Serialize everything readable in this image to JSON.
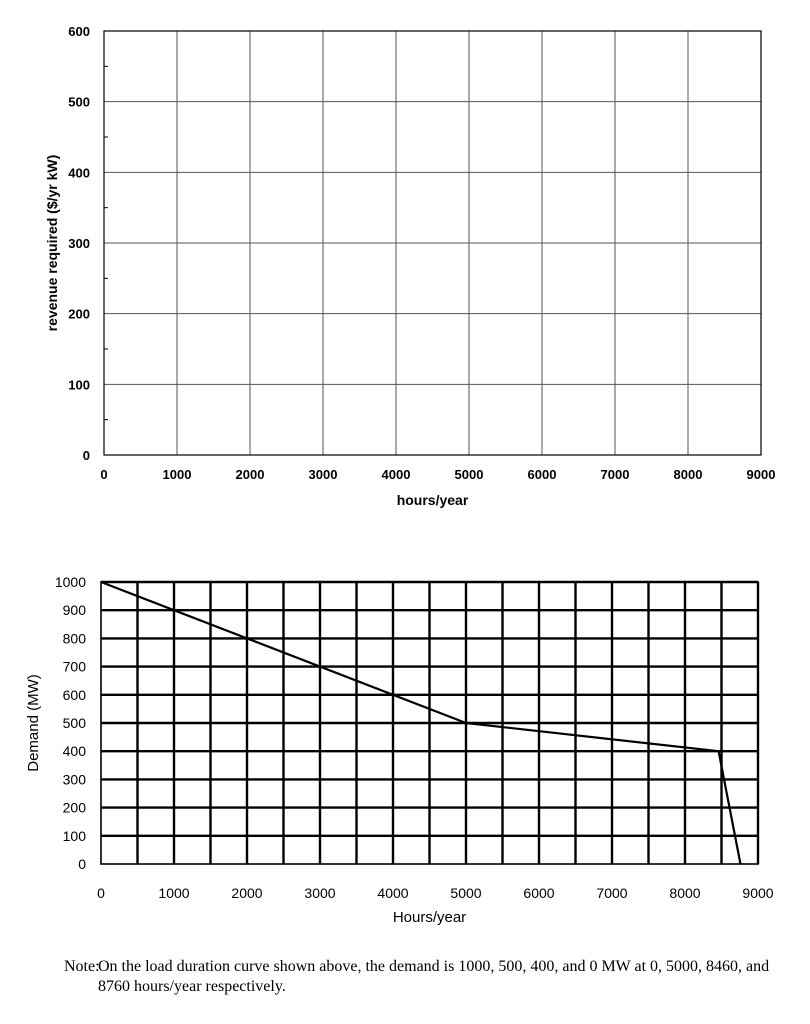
{
  "chart_data": [
    {
      "type": "line",
      "title": "",
      "xlabel": "hours/year",
      "ylabel": "revenue required ($/yr kW)",
      "xlim": [
        0,
        9000
      ],
      "ylim": [
        0,
        600
      ],
      "x_ticks": [
        "0",
        "1000",
        "2000",
        "3000",
        "4000",
        "5000",
        "6000",
        "7000",
        "8000",
        "9000"
      ],
      "y_ticks": [
        "0",
        "100",
        "200",
        "300",
        "400",
        "500",
        "600"
      ],
      "grid": true,
      "series": []
    },
    {
      "type": "line",
      "title": "",
      "xlabel": "Hours/year",
      "ylabel": "Demand (MW)",
      "xlim": [
        0,
        9000
      ],
      "ylim": [
        0,
        1000
      ],
      "x_ticks": [
        "0",
        "1000",
        "2000",
        "3000",
        "4000",
        "5000",
        "6000",
        "7000",
        "8000",
        "9000"
      ],
      "y_ticks": [
        "0",
        "100",
        "200",
        "300",
        "400",
        "500",
        "600",
        "700",
        "800",
        "900",
        "1000"
      ],
      "grid": true,
      "series": [
        {
          "x": [
            0,
            5000,
            8460,
            8760
          ],
          "y": [
            1000,
            500,
            400,
            0
          ]
        }
      ]
    }
  ],
  "note": {
    "label": "Note:",
    "text": "On the load duration curve shown above, the demand is 1000, 500, 400, and 0 MW at 0, 5000, 8460, and 8760 hours/year respectively."
  }
}
